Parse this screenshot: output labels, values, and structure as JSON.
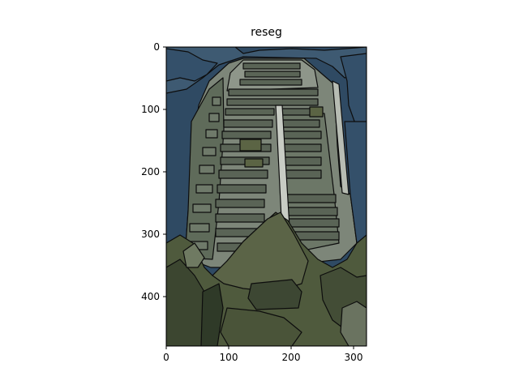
{
  "title": "reseg",
  "image_description_palette": {
    "sky": "#2f4a63",
    "sky_light": "#3e5a72",
    "building_light": "#7d8679",
    "building_mid": "#5f6b5a",
    "building_dark": "#4a5447",
    "foliage": "#4f5a3d",
    "foliage_dark": "#2f3a28",
    "outline": "#0d0d0d"
  },
  "axes": {
    "x_ticks": [
      "0",
      "100",
      "200",
      "300"
    ],
    "y_ticks": [
      "0",
      "100",
      "200",
      "300",
      "400"
    ],
    "xlim": [
      0,
      321
    ],
    "ylim": [
      481,
      0
    ]
  }
}
